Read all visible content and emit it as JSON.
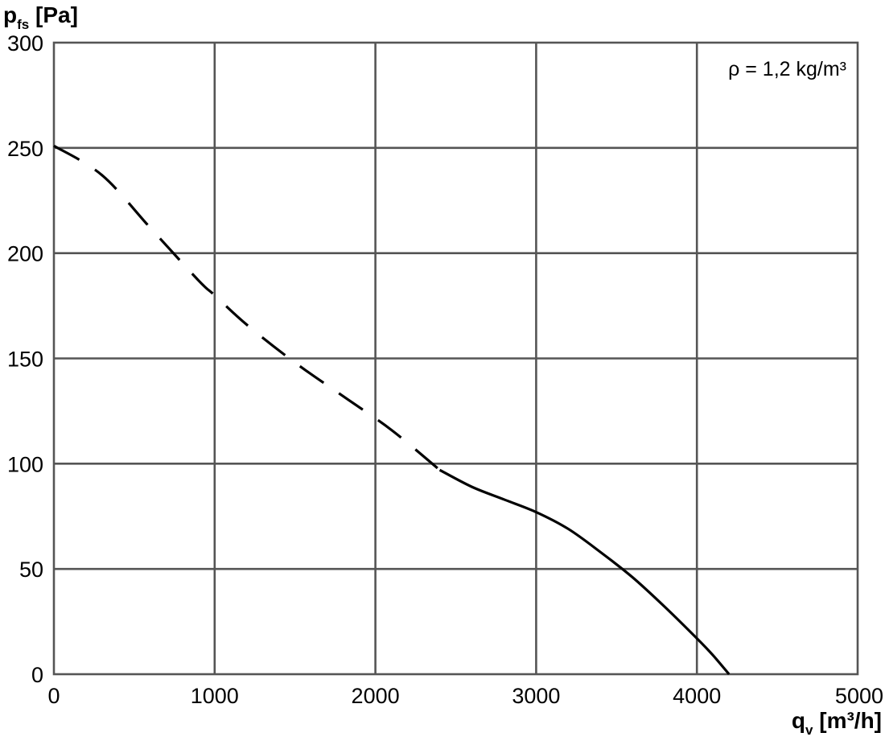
{
  "chart_data": {
    "type": "line",
    "xlabel": {
      "main": "q",
      "sub": "v",
      "unit": " [m³/h]"
    },
    "ylabel": {
      "main": "p",
      "sub": "fs",
      "unit": " [Pa]"
    },
    "annotation": "ρ = 1,2 kg/m³",
    "xlim": [
      0,
      5000
    ],
    "ylim": [
      0,
      300
    ],
    "x_ticks": [
      "0",
      "1000",
      "2000",
      "3000",
      "4000",
      "5000"
    ],
    "y_ticks": [
      "0",
      "50",
      "100",
      "150",
      "200",
      "250",
      "300"
    ],
    "grid": true,
    "series": [
      {
        "style": "dashed",
        "color": "#000000",
        "points": [
          [
            0,
            251
          ],
          [
            300,
            237
          ],
          [
            600,
            212
          ],
          [
            900,
            187
          ],
          [
            1000,
            180
          ],
          [
            1200,
            166
          ],
          [
            1500,
            148
          ],
          [
            1800,
            132
          ],
          [
            2100,
            116
          ],
          [
            2400,
            97
          ]
        ]
      },
      {
        "style": "solid",
        "color": "#000000",
        "points": [
          [
            2400,
            97
          ],
          [
            2600,
            89
          ],
          [
            2800,
            83
          ],
          [
            3000,
            77
          ],
          [
            3200,
            69
          ],
          [
            3400,
            58
          ],
          [
            3600,
            46
          ],
          [
            3800,
            32
          ],
          [
            4000,
            17
          ],
          [
            4100,
            9
          ],
          [
            4200,
            0
          ]
        ]
      }
    ]
  }
}
